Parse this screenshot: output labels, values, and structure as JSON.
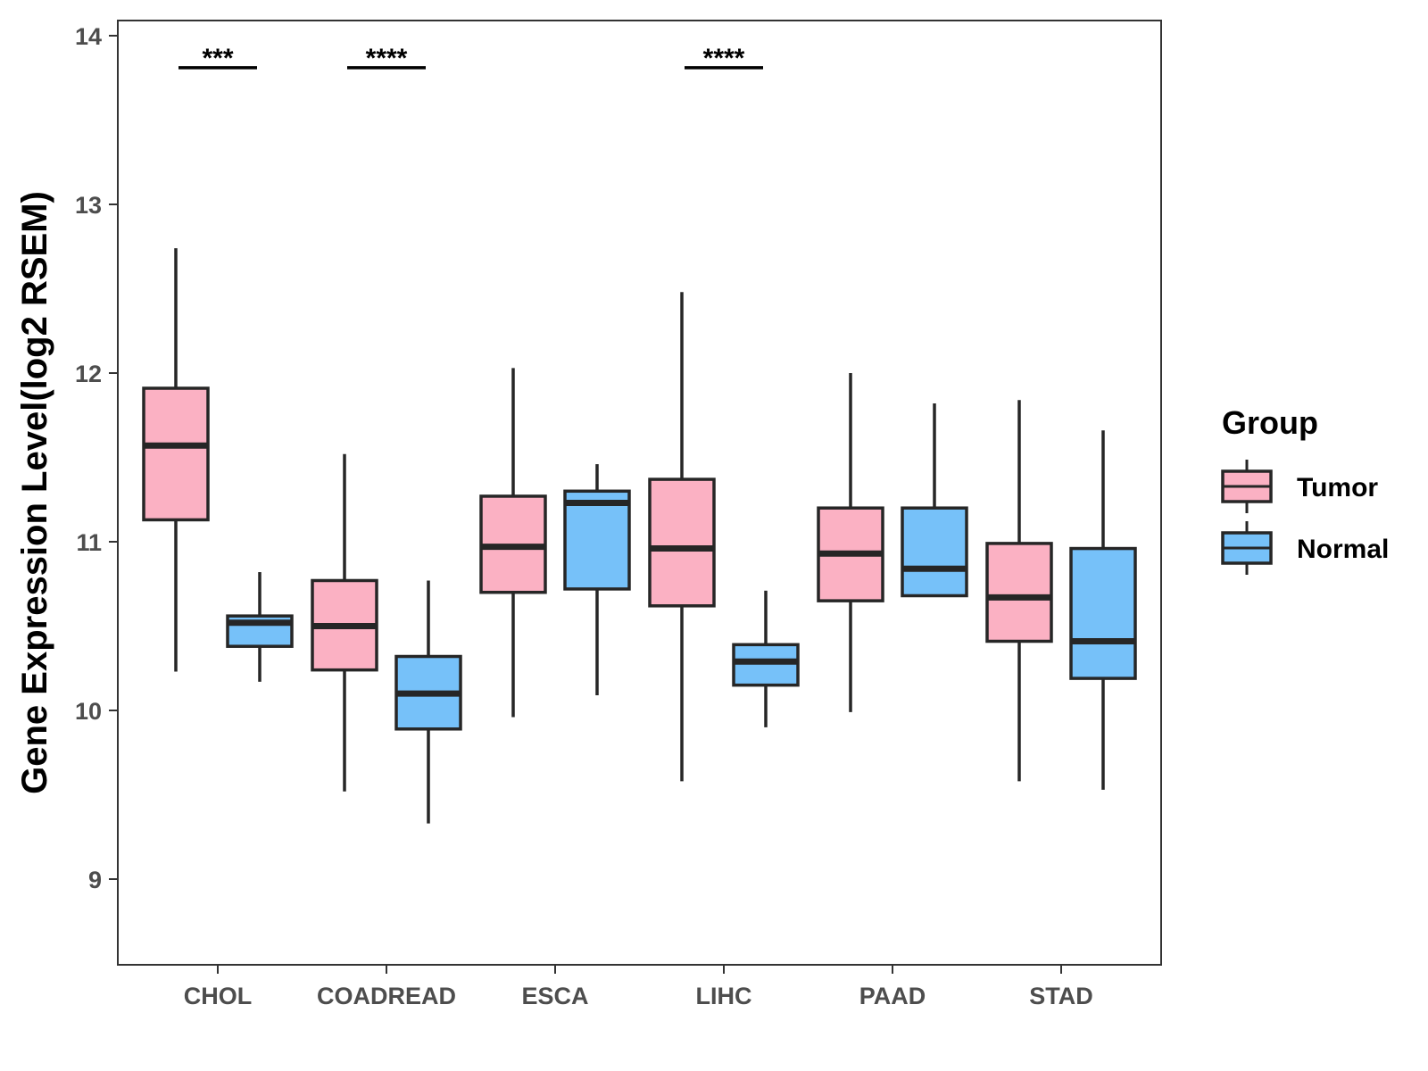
{
  "chart_data": {
    "type": "boxplot",
    "title": "",
    "xlabel": "",
    "ylabel": "Gene Expression Level(log2 RSEM)",
    "ylim": [
      8.5,
      14.1
    ],
    "yticks": [
      9,
      10,
      11,
      12,
      13,
      14
    ],
    "grid": false,
    "legend_position": "right",
    "categories": [
      "CHOL",
      "COADREAD",
      "ESCA",
      "LIHC",
      "PAAD",
      "STAD"
    ],
    "legend": {
      "title": "Group",
      "entries": [
        {
          "name": "Tumor",
          "color": "#FBB1C3"
        },
        {
          "name": "Normal",
          "color": "#76C1F9"
        }
      ]
    },
    "series": [
      {
        "name": "Tumor",
        "color": "#FBB1C3",
        "boxes": [
          {
            "category": "CHOL",
            "whisker_low": 10.23,
            "q1": 11.13,
            "median": 11.57,
            "q3": 11.91,
            "whisker_high": 12.74
          },
          {
            "category": "COADREAD",
            "whisker_low": 9.52,
            "q1": 10.24,
            "median": 10.5,
            "q3": 10.77,
            "whisker_high": 11.52
          },
          {
            "category": "ESCA",
            "whisker_low": 9.96,
            "q1": 10.7,
            "median": 10.97,
            "q3": 11.27,
            "whisker_high": 12.03
          },
          {
            "category": "LIHC",
            "whisker_low": 9.58,
            "q1": 10.62,
            "median": 10.96,
            "q3": 11.37,
            "whisker_high": 12.48
          },
          {
            "category": "PAAD",
            "whisker_low": 9.99,
            "q1": 10.65,
            "median": 10.93,
            "q3": 11.2,
            "whisker_high": 12.0
          },
          {
            "category": "STAD",
            "whisker_low": 9.58,
            "q1": 10.41,
            "median": 10.67,
            "q3": 10.99,
            "whisker_high": 11.84
          }
        ]
      },
      {
        "name": "Normal",
        "color": "#76C1F9",
        "boxes": [
          {
            "category": "CHOL",
            "whisker_low": 10.17,
            "q1": 10.38,
            "median": 10.52,
            "q3": 10.56,
            "whisker_high": 10.82
          },
          {
            "category": "COADREAD",
            "whisker_low": 9.33,
            "q1": 9.89,
            "median": 10.1,
            "q3": 10.32,
            "whisker_high": 10.77
          },
          {
            "category": "ESCA",
            "whisker_low": 10.09,
            "q1": 10.72,
            "median": 11.23,
            "q3": 11.3,
            "whisker_high": 11.46
          },
          {
            "category": "LIHC",
            "whisker_low": 9.9,
            "q1": 10.15,
            "median": 10.29,
            "q3": 10.39,
            "whisker_high": 10.71
          },
          {
            "category": "PAAD",
            "whisker_low": 10.68,
            "q1": 10.68,
            "median": 10.84,
            "q3": 11.2,
            "whisker_high": 11.82
          },
          {
            "category": "STAD",
            "whisker_low": 9.53,
            "q1": 10.19,
            "median": 10.41,
            "q3": 10.96,
            "whisker_high": 11.66
          }
        ]
      }
    ],
    "annotations": [
      {
        "category": "CHOL",
        "label": "***",
        "y": 13.81
      },
      {
        "category": "COADREAD",
        "label": "****",
        "y": 13.81
      },
      {
        "category": "LIHC",
        "label": "****",
        "y": 13.81
      }
    ]
  }
}
